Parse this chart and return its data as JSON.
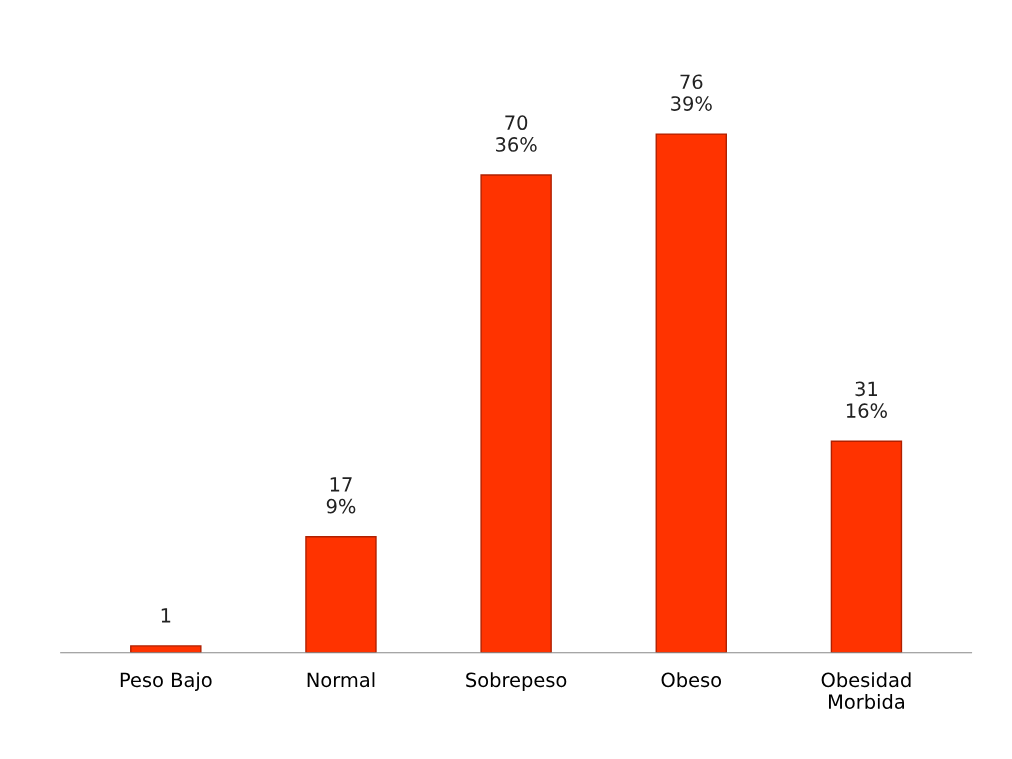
{
  "chart_data": {
    "type": "bar",
    "categories": [
      "Peso Bajo",
      "Normal",
      "Sobrepeso",
      "Obeso",
      "Obesidad\nMorbida"
    ],
    "values": [
      1,
      17,
      70,
      76,
      31
    ],
    "value_labels": [
      "1",
      "17\n9%",
      "70\n36%",
      "76\n39%",
      "31\n16%"
    ],
    "color": "#ff3300",
    "grid": false,
    "legend": false
  }
}
